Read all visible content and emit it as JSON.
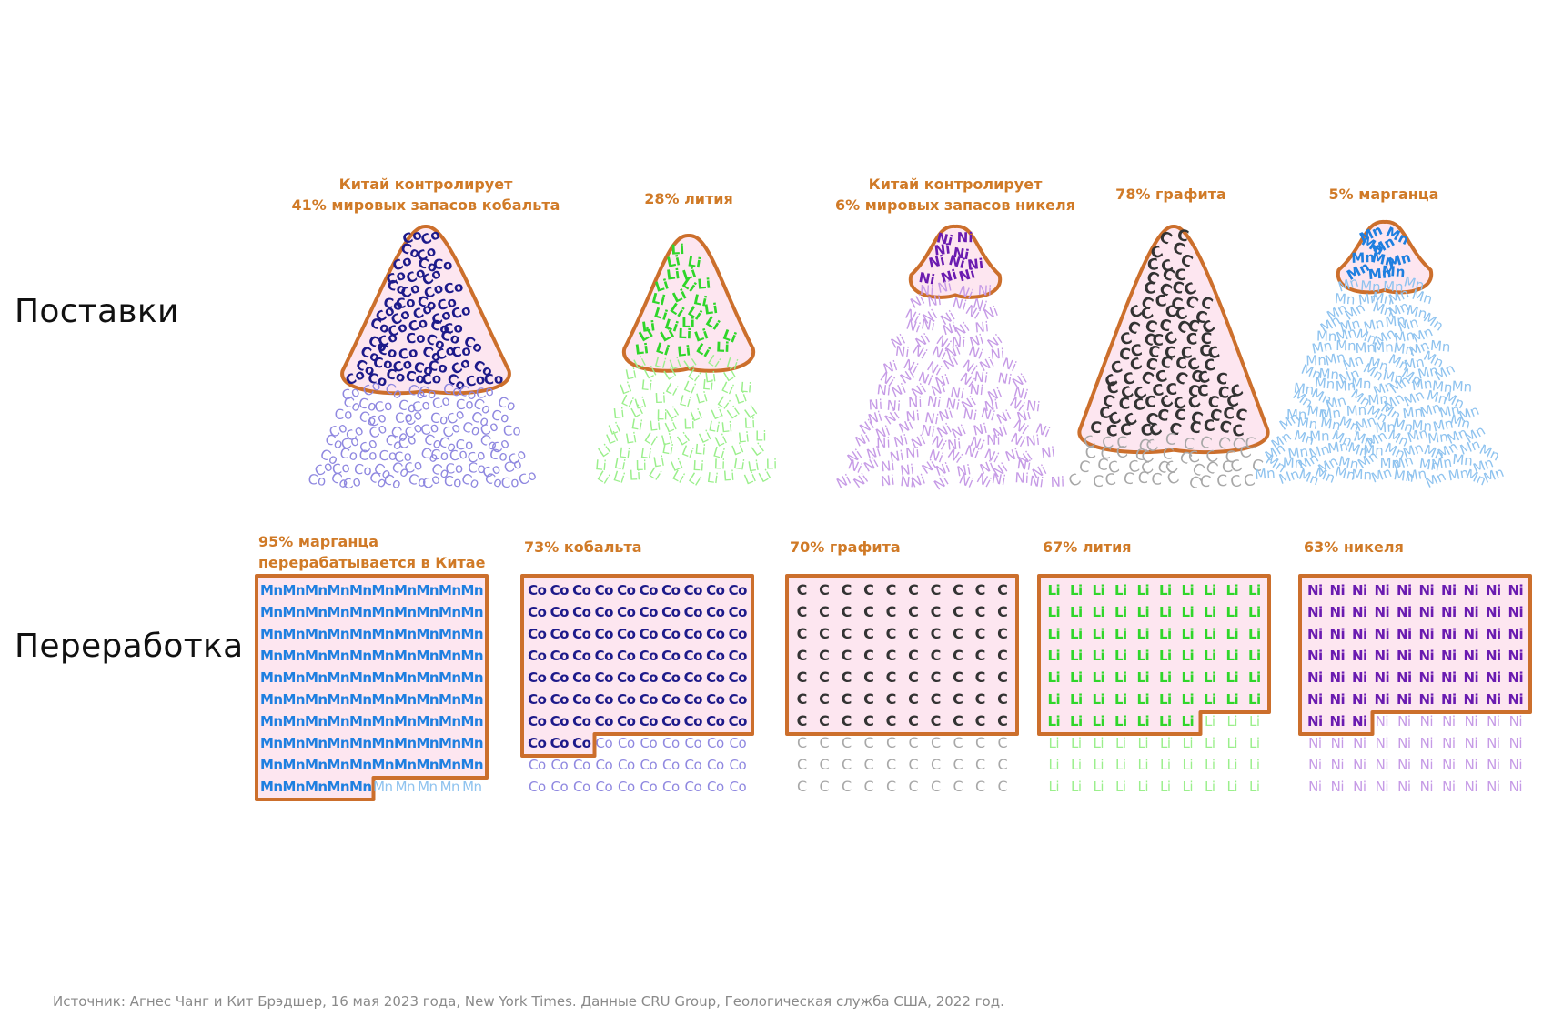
{
  "rows": {
    "supply": "Поставки",
    "processing": "Переработка"
  },
  "supply": [
    {
      "symbol": "Co",
      "share": 41,
      "caption": [
        "Китай контролирует",
        "41% мировых запасов кобальта"
      ]
    },
    {
      "symbol": "Li",
      "share": 28,
      "caption": [
        "28% лития"
      ]
    },
    {
      "symbol": "Ni",
      "share": 6,
      "caption": [
        "Китай контролирует",
        "6% мировых запасов никеля"
      ]
    },
    {
      "symbol": "C",
      "share": 78,
      "caption": [
        "78% графита"
      ]
    },
    {
      "symbol": "Mn",
      "share": 5,
      "caption": [
        "5% марганца"
      ]
    }
  ],
  "processing": [
    {
      "symbol": "Mn",
      "share": 95,
      "caption": [
        "95% марганца",
        "перерабатывается в Китае"
      ]
    },
    {
      "symbol": "Co",
      "share": 73,
      "caption": [
        "73% кобальта"
      ]
    },
    {
      "symbol": "C",
      "share": 70,
      "caption": [
        "70% графита"
      ]
    },
    {
      "symbol": "Li",
      "share": 67,
      "caption": [
        "67% лития"
      ]
    },
    {
      "symbol": "Ni",
      "share": 63,
      "caption": [
        "63% никеля"
      ]
    }
  ],
  "colors": {
    "highlight_outline": "#cc6f2c",
    "highlight_fill": "#fde6f0",
    "caption": "#d07a27",
    "Co": {
      "dark": "#1d1a8a",
      "light": "#8f88e0"
    },
    "Li": {
      "dark": "#2fd62a",
      "light": "#9bef8c"
    },
    "Ni": {
      "dark": "#6a1bb0",
      "light": "#c69be6"
    },
    "C": {
      "dark": "#333333",
      "light": "#a8a8a8"
    },
    "Mn": {
      "dark": "#1e7fe0",
      "light": "#8fc3ef"
    }
  },
  "source": "Источник: Агнес Чанг и Кит Брэдшер, 16 мая 2023 года, New York Times. Данные CRU Group, Геологическая служба США, 2022 год."
}
